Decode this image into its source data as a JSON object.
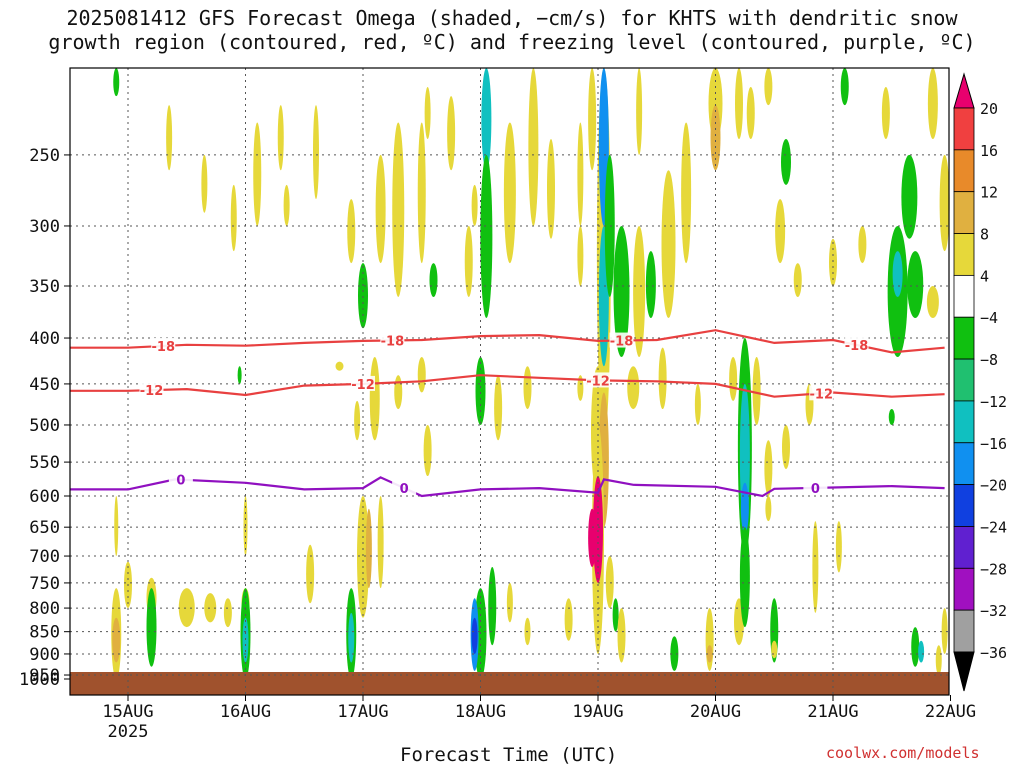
{
  "chart_data": {
    "type": "heatmap",
    "title_line1": "2025081412 GFS Forecast Omega (shaded, −cm/s) for KHTS with dendritic snow",
    "title_line2": "growth region (contoured, red, ºC) and freezing level (contoured, purple, ºC)",
    "xlabel": "Forecast Time (UTC)",
    "ylabel": "",
    "x_ticks": [
      "15AUG",
      "16AUG",
      "17AUG",
      "18AUG",
      "19AUG",
      "20AUG",
      "21AUG",
      "22AUG"
    ],
    "x_year_label": "2025",
    "y_ticks": [
      250,
      300,
      350,
      400,
      450,
      500,
      550,
      600,
      650,
      700,
      750,
      800,
      850,
      900,
      950,
      1000
    ],
    "ylim": [
      200,
      1000
    ],
    "y_scale": "log-pressure",
    "grid": true,
    "colorbar": {
      "labels": [
        20,
        16,
        12,
        8,
        4,
        -4,
        -8,
        -12,
        -16,
        -20,
        -24,
        -28,
        -32,
        -36
      ],
      "colors": [
        "#e8006e",
        "#f04040",
        "#e88a2a",
        "#e0b040",
        "#e6d83a",
        "#ffffff",
        "#10c010",
        "#20c070",
        "#10c0c0",
        "#1090f0",
        "#1040e0",
        "#6020d0",
        "#a010c0",
        "#a0a0a0",
        "#000000"
      ]
    },
    "contours": [
      {
        "name": "-18",
        "color": "#e84040",
        "label": "-18",
        "points": [
          [
            0,
            410
          ],
          [
            0.5,
            407
          ],
          [
            1,
            408
          ],
          [
            1.5,
            405
          ],
          [
            2,
            403
          ],
          [
            2.5,
            402
          ],
          [
            3,
            398
          ],
          [
            3.5,
            397
          ],
          [
            4,
            403
          ],
          [
            4.5,
            402
          ],
          [
            5,
            392
          ],
          [
            5.5,
            405
          ],
          [
            6,
            402
          ],
          [
            6.5,
            415
          ],
          [
            6.95,
            410
          ]
        ],
        "label_x": [
          0.3,
          2.25,
          4.2,
          6.2
        ]
      },
      {
        "name": "-12",
        "color": "#e84040",
        "label": "-12",
        "points": [
          [
            0,
            458
          ],
          [
            0.5,
            456
          ],
          [
            1,
            463
          ],
          [
            1.5,
            452
          ],
          [
            2,
            450
          ],
          [
            2.5,
            447
          ],
          [
            3,
            440
          ],
          [
            3.5,
            443
          ],
          [
            4,
            446
          ],
          [
            4.5,
            447
          ],
          [
            5,
            450
          ],
          [
            5.5,
            465
          ],
          [
            6,
            460
          ],
          [
            6.5,
            465
          ],
          [
            6.95,
            462
          ]
        ],
        "label_x": [
          0.2,
          2.0,
          4.0,
          5.9
        ]
      },
      {
        "name": "0",
        "color": "#9010c0",
        "label": "0",
        "points": [
          [
            0,
            590
          ],
          [
            0.4,
            575
          ],
          [
            1,
            580
          ],
          [
            1.5,
            590
          ],
          [
            2,
            588
          ],
          [
            2.15,
            572
          ],
          [
            2.5,
            600
          ],
          [
            3,
            590
          ],
          [
            3.5,
            588
          ],
          [
            4,
            595
          ],
          [
            4.05,
            575
          ],
          [
            4.3,
            583
          ],
          [
            5,
            586
          ],
          [
            5.4,
            600
          ],
          [
            5.5,
            589
          ],
          [
            6,
            587
          ],
          [
            6.5,
            585
          ],
          [
            6.95,
            588
          ]
        ],
        "label_x": [
          0.45,
          2.35,
          5.85
        ]
      }
    ],
    "shaded_regions": [
      {
        "name": "descent-yellow",
        "color": "#e6d83a"
      },
      {
        "name": "descent-orange",
        "color": "#e0b040"
      },
      {
        "name": "ascent-green",
        "color": "#10c010"
      },
      {
        "name": "ascent-teal",
        "color": "#10c0c0"
      },
      {
        "name": "ascent-blue",
        "color": "#1090f0"
      },
      {
        "name": "ascent-deepblue",
        "color": "#1040e0"
      },
      {
        "name": "strong-magenta",
        "color": "#e8006e"
      },
      {
        "name": "ground",
        "color": "#a0522d"
      }
    ]
  },
  "credit": "coolwx.com/models"
}
